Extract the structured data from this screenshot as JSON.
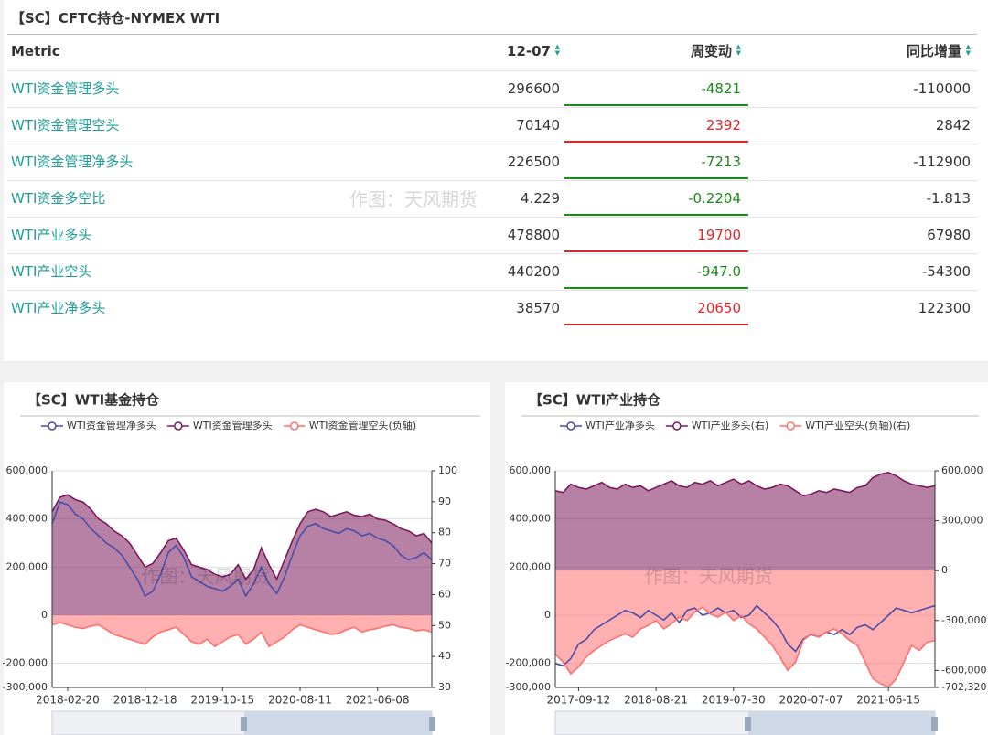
{
  "header": {
    "title": "【SC】CFTC持仓-NYMEX WTI"
  },
  "watermark": "作图：天风期货",
  "table": {
    "columns": [
      "Metric",
      "12-07",
      "周变动",
      "同比增量"
    ],
    "rows": [
      [
        "WTI资金管理多头",
        "296600",
        "-4821",
        "-110000"
      ],
      [
        "WTI资金管理空头",
        "70140",
        "2392",
        "2842"
      ],
      [
        "WTI资金管理净多头",
        "226500",
        "-7213",
        "-112900"
      ],
      [
        "WTI资金多空比",
        "4.229",
        "-0.2204",
        "-1.813"
      ],
      [
        "WTI产业多头",
        "478800",
        "19700",
        "67980"
      ],
      [
        "WTI产业空头",
        "440200",
        "-947.0",
        "-54300"
      ],
      [
        "WTI产业净多头",
        "38570",
        "20650",
        "122300"
      ]
    ]
  },
  "chart_data": [
    {
      "type": "area",
      "title": "【SC】WTI基金持仓",
      "categories": [
        null,
        null,
        "2018-02-20",
        null,
        null,
        null,
        null,
        null,
        null,
        null,
        null,
        null,
        "2018-12-18",
        null,
        null,
        null,
        null,
        null,
        null,
        null,
        null,
        null,
        "2019-10-15",
        null,
        null,
        null,
        null,
        null,
        null,
        null,
        null,
        null,
        "2020-08-11",
        null,
        null,
        null,
        null,
        null,
        null,
        null,
        null,
        null,
        "2021-06-08",
        null,
        null,
        null,
        null,
        null,
        null,
        null
      ],
      "ylim": [
        -300000,
        600000
      ],
      "yticks": [
        {
          "value": 600000,
          "label": "600,000"
        },
        {
          "value": 400000,
          "label": "400,000"
        },
        {
          "value": 200000,
          "label": "200,000"
        },
        0,
        {
          "value": -200000,
          "label": "-200,000"
        },
        {
          "value": -300000,
          "label": "-300,000"
        }
      ],
      "y2lim": [
        30,
        100
      ],
      "y2ticks": [
        100,
        90,
        80,
        70,
        60,
        50,
        40,
        30
      ],
      "grid": true,
      "series": [
        {
          "name": "WTI资金管理净多头",
          "color": "#4b4ba8",
          "style": "line",
          "values": [
            380000,
            470000,
            460000,
            420000,
            400000,
            360000,
            330000,
            300000,
            280000,
            250000,
            200000,
            150000,
            80000,
            100000,
            170000,
            260000,
            290000,
            240000,
            160000,
            140000,
            120000,
            110000,
            100000,
            120000,
            150000,
            80000,
            130000,
            200000,
            130000,
            90000,
            160000,
            250000,
            330000,
            370000,
            380000,
            360000,
            350000,
            340000,
            360000,
            350000,
            330000,
            340000,
            320000,
            310000,
            290000,
            250000,
            230000,
            240000,
            260000,
            230000
          ]
        },
        {
          "name": "WTI资金管理多头",
          "color": "#7b1a5c",
          "style": "area",
          "values": [
            430000,
            490000,
            500000,
            480000,
            470000,
            440000,
            400000,
            380000,
            350000,
            330000,
            300000,
            250000,
            200000,
            215000,
            260000,
            310000,
            320000,
            270000,
            210000,
            200000,
            190000,
            170000,
            160000,
            170000,
            210000,
            150000,
            190000,
            280000,
            210000,
            150000,
            230000,
            310000,
            380000,
            430000,
            440000,
            430000,
            410000,
            420000,
            430000,
            415000,
            410000,
            420000,
            400000,
            395000,
            380000,
            360000,
            350000,
            330000,
            340000,
            300000
          ]
        },
        {
          "name": "WTI资金管理空头(负轴)",
          "color": "#ff7070",
          "style": "area",
          "values": [
            -40000,
            -30000,
            -40000,
            -50000,
            -55000,
            -45000,
            -40000,
            -60000,
            -80000,
            -90000,
            -100000,
            -110000,
            -120000,
            -90000,
            -70000,
            -60000,
            -50000,
            -80000,
            -110000,
            -120000,
            -100000,
            -130000,
            -110000,
            -90000,
            -80000,
            -120000,
            -100000,
            -70000,
            -130000,
            -110000,
            -90000,
            -60000,
            -40000,
            -50000,
            -60000,
            -70000,
            -80000,
            -75000,
            -60000,
            -50000,
            -70000,
            -60000,
            -55000,
            -45000,
            -40000,
            -50000,
            -55000,
            -65000,
            -60000,
            -70000
          ]
        }
      ]
    },
    {
      "type": "area",
      "title": "【SC】WTI产业持仓",
      "categories": [
        null,
        null,
        null,
        "2017-09-12",
        null,
        null,
        null,
        null,
        null,
        null,
        null,
        null,
        null,
        "2018-08-21",
        null,
        null,
        null,
        null,
        null,
        null,
        null,
        null,
        null,
        "2019-07-30",
        null,
        null,
        null,
        null,
        null,
        null,
        null,
        null,
        null,
        "2020-07-07",
        null,
        null,
        null,
        null,
        null,
        null,
        null,
        null,
        null,
        "2021-06-15",
        null,
        null,
        null,
        null,
        null,
        null
      ],
      "ylim": [
        -300000,
        600000
      ],
      "yticks": [
        {
          "value": 600000,
          "label": "600,000"
        },
        {
          "value": 400000,
          "label": "400,000"
        },
        {
          "value": 200000,
          "label": "200,000"
        },
        0,
        {
          "value": -200000,
          "label": "-200,000"
        },
        {
          "value": -300000,
          "label": "-300,000"
        }
      ],
      "y2lim": [
        -702320,
        600000
      ],
      "y2ticks": [
        {
          "value": 600000,
          "label": "600,000"
        },
        {
          "value": 300000,
          "label": "300,000"
        },
        0,
        {
          "value": -300000,
          "label": "-300,000"
        },
        {
          "value": -600000,
          "label": "-600,000"
        },
        {
          "value": -702320,
          "label": "-702,320"
        }
      ],
      "grid": true,
      "series": [
        {
          "name": "WTI产业净多头",
          "color": "#4b4ba8",
          "style": "line",
          "values": [
            -200000,
            -210000,
            -180000,
            -120000,
            -100000,
            -60000,
            -40000,
            -20000,
            0,
            20000,
            10000,
            -10000,
            20000,
            0,
            -20000,
            10000,
            -30000,
            20000,
            30000,
            0,
            10000,
            30000,
            10000,
            20000,
            -10000,
            0,
            40000,
            10000,
            -20000,
            -60000,
            -120000,
            -150000,
            -100000,
            -80000,
            -90000,
            -70000,
            -80000,
            -60000,
            -80000,
            -50000,
            -40000,
            -60000,
            -30000,
            0,
            30000,
            20000,
            10000,
            20000,
            30000,
            40000
          ]
        },
        {
          "name": "WTI产业多头(右)",
          "color": "#7b1a5c",
          "style": "area",
          "axis": "y2",
          "values": [
            480000,
            470000,
            520000,
            500000,
            490000,
            510000,
            530000,
            500000,
            490000,
            520000,
            500000,
            510000,
            480000,
            500000,
            520000,
            540000,
            510000,
            500000,
            530000,
            520000,
            540000,
            510000,
            530000,
            550000,
            520000,
            540000,
            510000,
            490000,
            500000,
            520000,
            510000,
            480000,
            450000,
            460000,
            480000,
            470000,
            490000,
            480000,
            470000,
            500000,
            510000,
            560000,
            580000,
            590000,
            570000,
            540000,
            520000,
            510000,
            500000,
            510000
          ]
        },
        {
          "name": "WTI产业空头(负轴)(右)",
          "color": "#ff7070",
          "style": "area",
          "axis": "y2",
          "values": [
            -500000,
            -550000,
            -620000,
            -580000,
            -520000,
            -480000,
            -450000,
            -420000,
            -400000,
            -380000,
            -400000,
            -350000,
            -330000,
            -300000,
            -350000,
            -320000,
            -280000,
            -300000,
            -250000,
            -220000,
            -260000,
            -280000,
            -250000,
            -300000,
            -270000,
            -320000,
            -350000,
            -400000,
            -450000,
            -520000,
            -600000,
            -550000,
            -420000,
            -380000,
            -400000,
            -370000,
            -350000,
            -380000,
            -420000,
            -450000,
            -550000,
            -650000,
            -680000,
            -700000,
            -650000,
            -550000,
            -450000,
            -480000,
            -430000,
            -420000
          ]
        }
      ]
    }
  ]
}
